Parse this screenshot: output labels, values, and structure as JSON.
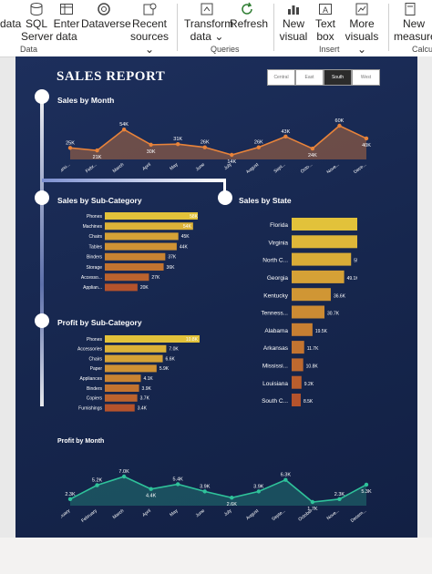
{
  "ribbon": {
    "buttons": [
      {
        "label1": "data",
        "label2": ""
      },
      {
        "label1": "SQL",
        "label2": "Server"
      },
      {
        "label1": "Enter",
        "label2": "data"
      },
      {
        "label1": "Dataverse",
        "label2": ""
      },
      {
        "label1": "Recent",
        "label2": "sources ⌄"
      },
      {
        "label1": "Transform",
        "label2": "data ⌄"
      },
      {
        "label1": "Refresh",
        "label2": ""
      },
      {
        "label1": "New",
        "label2": "visual"
      },
      {
        "label1": "Text",
        "label2": "box"
      },
      {
        "label1": "More",
        "label2": "visuals ⌄"
      },
      {
        "label1": "New",
        "label2": "measure"
      }
    ],
    "groups": [
      "Data",
      "Queries",
      "Insert",
      "Calcu"
    ]
  },
  "report": {
    "title": "SALES REPORT",
    "slicers": [
      {
        "label": "Central",
        "selected": false
      },
      {
        "label": "East",
        "selected": false
      },
      {
        "label": "South",
        "selected": true
      },
      {
        "label": "West",
        "selected": false
      }
    ],
    "sections": {
      "sales_by_month": "Sales by Month",
      "sales_by_subcategory": "Sales by Sub-Category",
      "sales_by_state": "Sales by State",
      "profit_by_subcategory": "Profit by Sub-Category",
      "profit_by_month": "Profit by Month"
    }
  },
  "chart_data": [
    {
      "type": "area",
      "title": "Sales by Month",
      "categories": [
        "Janu...",
        "Febr...",
        "March",
        "April",
        "May",
        "June",
        "July",
        "August",
        "Sept...",
        "Octo...",
        "Nove...",
        "Dece..."
      ],
      "values": [
        25,
        21,
        54,
        30,
        31,
        26,
        14,
        26,
        43,
        24,
        60,
        40
      ],
      "data_labels": [
        "25K",
        "21K",
        "54K",
        "30K",
        "31K",
        "26K",
        "14K",
        "26K",
        "43K",
        "24K",
        "60K",
        "40K"
      ],
      "color": "#e8833a"
    },
    {
      "type": "bar",
      "title": "Sales by Sub-Category",
      "categories": [
        "Phones",
        "Machines",
        "Chairs",
        "Tables",
        "Binders",
        "Storage",
        "Accesso...",
        "Applian..."
      ],
      "values": [
        58,
        54,
        45,
        44,
        37,
        36,
        27,
        20
      ],
      "data_labels": [
        "58K",
        "54K",
        "45K",
        "44K",
        "37K",
        "36K",
        "27K",
        "20K"
      ]
    },
    {
      "type": "bar",
      "title": "Sales by State",
      "categories": [
        "Florida",
        "Virginia",
        "North C...",
        "Georgia",
        "Kentucky",
        "Tenness...",
        "Alabama",
        "Arkansas",
        "Mississi...",
        "Louisiana",
        "South C..."
      ],
      "values": [
        89.5,
        70.6,
        55.6,
        49.1,
        36.6,
        30.7,
        19.5,
        11.7,
        10.8,
        9.2,
        8.5
      ],
      "data_labels": [
        "89.5K",
        "70.6K",
        "55.6K",
        "49.1K",
        "36.6K",
        "30.7K",
        "19.5K",
        "11.7K",
        "10.8K",
        "9.2K",
        "8.5K"
      ]
    },
    {
      "type": "bar",
      "title": "Profit by Sub-Category",
      "categories": [
        "Phones",
        "Accessories",
        "Chairs",
        "Paper",
        "Appliances",
        "Binders",
        "Copiers",
        "Furnishings"
      ],
      "values": [
        10.8,
        7.0,
        6.6,
        5.9,
        4.1,
        3.9,
        3.7,
        3.4
      ],
      "data_labels": [
        "10.8K",
        "7.0K",
        "6.6K",
        "5.9K",
        "4.1K",
        "3.9K",
        "3.7K",
        "3.4K"
      ]
    },
    {
      "type": "area",
      "title": "Profit by Month",
      "categories": [
        "January",
        "February",
        "March",
        "April",
        "May",
        "June",
        "July",
        "August",
        "Septe...",
        "October",
        "Nove...",
        "Decem..."
      ],
      "values": [
        2.3,
        5.2,
        7.0,
        4.4,
        5.4,
        3.9,
        2.6,
        3.9,
        6.3,
        1.7,
        2.3,
        5.3
      ],
      "data_labels": [
        "2.3K",
        "5.2K",
        "7.0K",
        "4.4K",
        "5.4K",
        "3.9K",
        "2.6K",
        "3.9K",
        "6.3K",
        "1.7K",
        "2.3K",
        "5.3K"
      ],
      "color": "#2fc29a"
    }
  ],
  "colors": {
    "gradient_top": "#e2c23a",
    "gradient_bottom": "#b5532c",
    "canvas_bg": "#1a2b55"
  }
}
